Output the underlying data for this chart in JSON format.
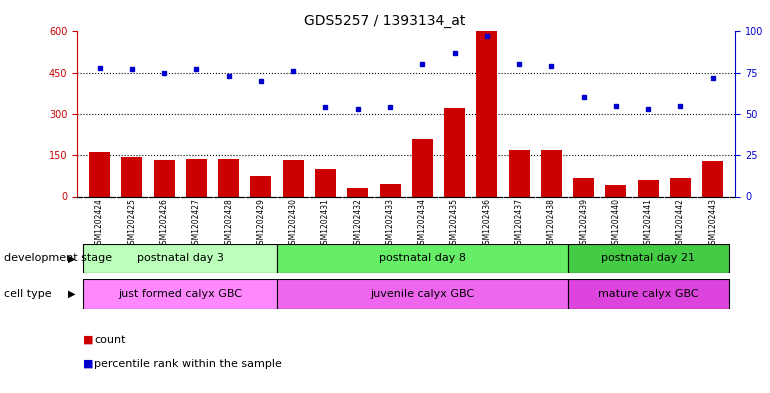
{
  "title": "GDS5257 / 1393134_at",
  "samples": [
    "GSM1202424",
    "GSM1202425",
    "GSM1202426",
    "GSM1202427",
    "GSM1202428",
    "GSM1202429",
    "GSM1202430",
    "GSM1202431",
    "GSM1202432",
    "GSM1202433",
    "GSM1202434",
    "GSM1202435",
    "GSM1202436",
    "GSM1202437",
    "GSM1202438",
    "GSM1202439",
    "GSM1202440",
    "GSM1202441",
    "GSM1202442",
    "GSM1202443"
  ],
  "counts": [
    162,
    143,
    132,
    138,
    138,
    75,
    132,
    100,
    30,
    45,
    210,
    320,
    600,
    170,
    168,
    68,
    40,
    60,
    68,
    130
  ],
  "percentile": [
    78,
    77,
    75,
    77,
    73,
    70,
    76,
    54,
    53,
    54,
    80,
    87,
    97,
    80,
    79,
    60,
    55,
    53,
    55,
    72
  ],
  "bar_color": "#cc0000",
  "dot_color": "#0000cc",
  "groups": [
    {
      "label": "postnatal day 3",
      "start": 0,
      "end": 5,
      "color": "#bbffbb"
    },
    {
      "label": "postnatal day 8",
      "start": 6,
      "end": 14,
      "color": "#66ee66"
    },
    {
      "label": "postnatal day 21",
      "start": 15,
      "end": 19,
      "color": "#44cc44"
    }
  ],
  "cell_types": [
    {
      "label": "just formed calyx GBC",
      "start": 0,
      "end": 5,
      "color": "#ff88ff"
    },
    {
      "label": "juvenile calyx GBC",
      "start": 6,
      "end": 14,
      "color": "#ee66ee"
    },
    {
      "label": "mature calyx GBC",
      "start": 15,
      "end": 19,
      "color": "#dd44dd"
    }
  ],
  "dev_stage_label": "development stage",
  "cell_type_label": "cell type",
  "legend_count_label": "count",
  "legend_pct_label": "percentile rank within the sample",
  "tick_fontsize": 7,
  "title_fontsize": 10
}
